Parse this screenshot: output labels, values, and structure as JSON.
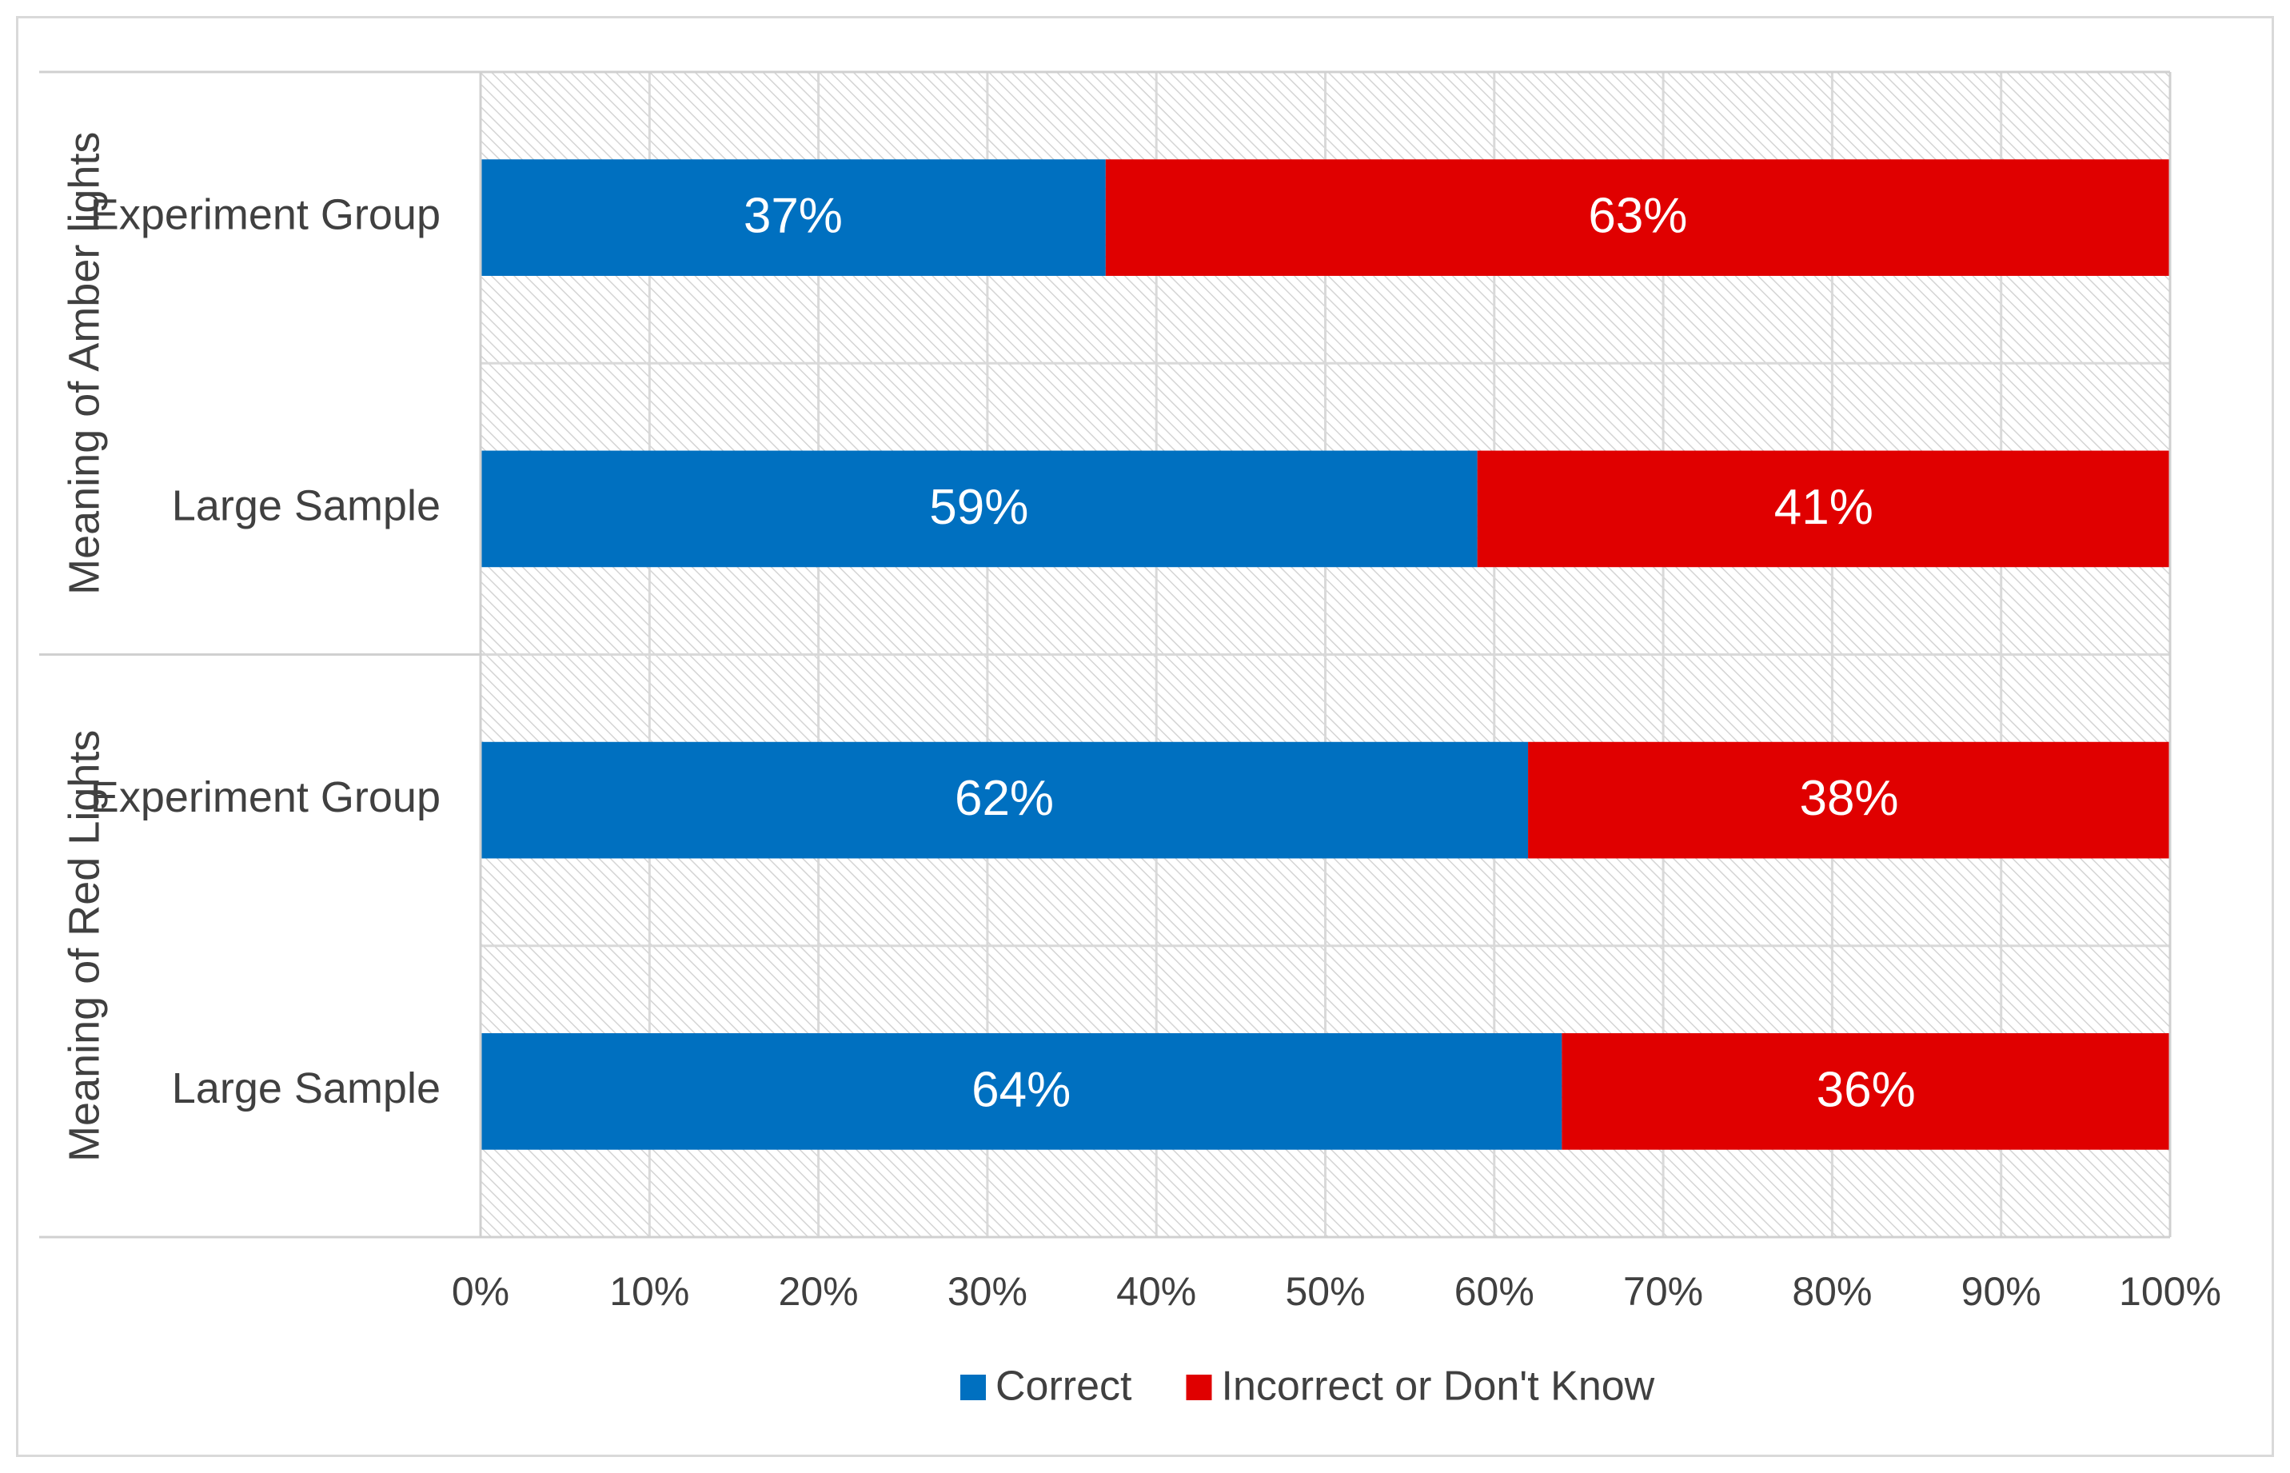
{
  "chart_data": {
    "type": "bar",
    "orientation": "horizontal",
    "stacked": "100%",
    "groups": [
      {
        "label": "Meaning of Amber lights",
        "categories": [
          {
            "label": "Experiment Group",
            "values": [
              37,
              63
            ]
          },
          {
            "label": "Large Sample",
            "values": [
              59,
              41
            ]
          }
        ]
      },
      {
        "label": "Meaning of Red Lights",
        "categories": [
          {
            "label": "Experiment Group",
            "values": [
              62,
              38
            ]
          },
          {
            "label": "Large Sample",
            "values": [
              64,
              36
            ]
          }
        ]
      }
    ],
    "series": [
      {
        "name": "Correct",
        "color": "#0070c0"
      },
      {
        "name": "Incorrect or Don't Know",
        "color": "#e00000"
      }
    ],
    "xlim": [
      0,
      100
    ],
    "x_ticks": [
      "0%",
      "10%",
      "20%",
      "30%",
      "40%",
      "50%",
      "60%",
      "70%",
      "80%",
      "90%",
      "100%"
    ],
    "grid": true,
    "plot_background": "diagonal hatch",
    "legend_position": "bottom",
    "title": "",
    "xlabel": "",
    "ylabel": ""
  }
}
